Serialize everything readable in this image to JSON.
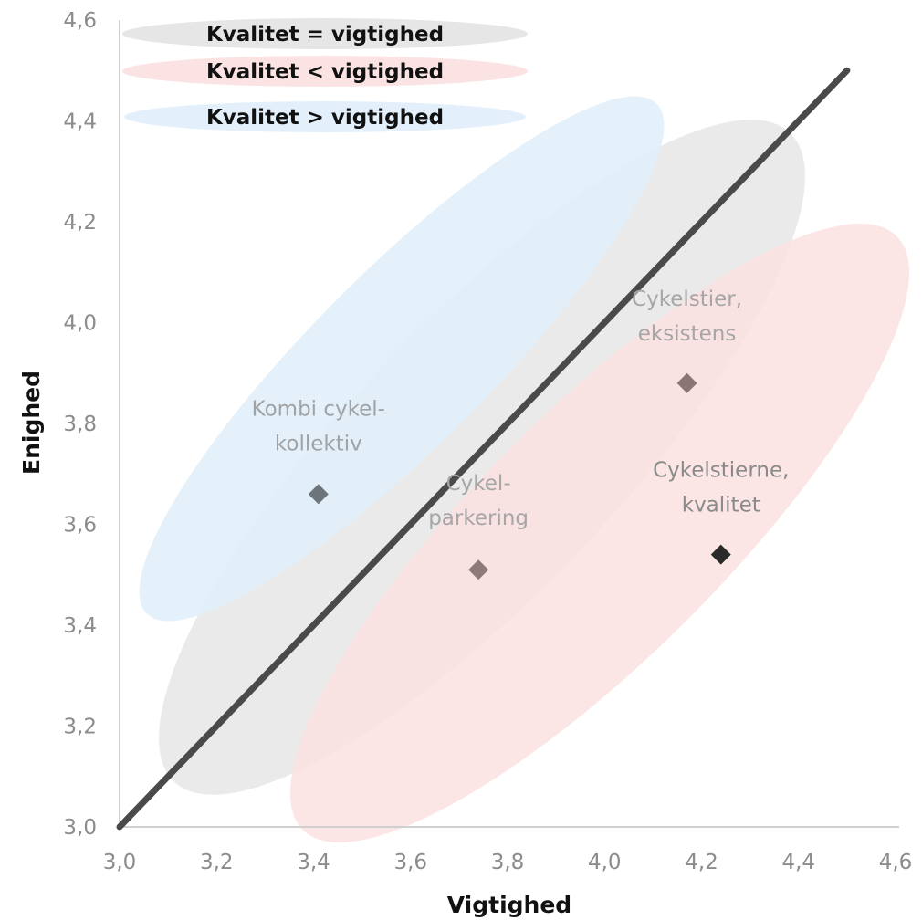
{
  "chart_data": {
    "type": "scatter",
    "xlabel": "Vigtighed",
    "ylabel": "Enighed",
    "xlim": [
      3.0,
      4.6
    ],
    "ylim": [
      3.0,
      4.6
    ],
    "x_ticks": [
      "3,0",
      "3,2",
      "3,4",
      "3,6",
      "3,8",
      "4,0",
      "4,2",
      "4,4",
      "4,6"
    ],
    "y_ticks": [
      "3,0",
      "3,2",
      "3,4",
      "3,6",
      "3,8",
      "4,0",
      "4,2",
      "4,4",
      "4,6"
    ],
    "grid": false,
    "reference_line": {
      "from": [
        3.0,
        3.0
      ],
      "to": [
        4.5,
        4.5
      ],
      "color": "#4a4a4a"
    },
    "legend": {
      "placement": "top-left",
      "entries": [
        {
          "label": "Kvalitet = vigtighed",
          "color": "#e6e6e6"
        },
        {
          "label": "Kvalitet < vigtighed",
          "color": "#fbe3e3"
        },
        {
          "label": "Kvalitet > vigtighed",
          "color": "#e3f0fb"
        }
      ]
    },
    "points": [
      {
        "label_lines": [
          "Kombi cykel-",
          "kollektiv"
        ],
        "x": 3.41,
        "y": 3.66,
        "marker_color": "#6d757b",
        "label_color": "#a0a3a6"
      },
      {
        "label_lines": [
          "Cykel-",
          "parkering"
        ],
        "x": 3.74,
        "y": 3.51,
        "marker_color": "#8e7a7a",
        "label_color": "#a6a6a6"
      },
      {
        "label_lines": [
          "Cykelstier,",
          "eksistens"
        ],
        "x": 4.17,
        "y": 3.88,
        "marker_color": "#8a7474",
        "label_color": "#a6a6a6"
      },
      {
        "label_lines": [
          "Cykelstierne,",
          "kvalitet"
        ],
        "x": 4.24,
        "y": 3.54,
        "marker_color": "#2a2a2a",
        "label_color": "#8a8a8a"
      }
    ]
  }
}
